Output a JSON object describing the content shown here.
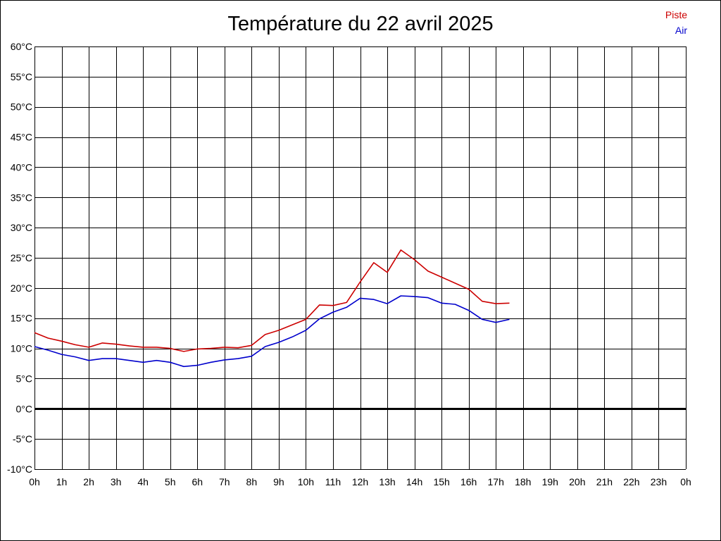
{
  "chart_data": {
    "type": "line",
    "title": "Température du 22 avril 2025",
    "x_tick_labels": [
      "0h",
      "1h",
      "2h",
      "3h",
      "4h",
      "5h",
      "6h",
      "7h",
      "8h",
      "9h",
      "10h",
      "11h",
      "12h",
      "13h",
      "14h",
      "15h",
      "16h",
      "17h",
      "18h",
      "19h",
      "20h",
      "21h",
      "22h",
      "23h",
      "0h"
    ],
    "y_tick_labels": [
      "60°C",
      "55°C",
      "50°C",
      "45°C",
      "40°C",
      "35°C",
      "30°C",
      "25°C",
      "20°C",
      "15°C",
      "10°C",
      "5°C",
      "0°C",
      "-5°C",
      "-10°C"
    ],
    "xlim": [
      0,
      24
    ],
    "ylim": [
      -10,
      60
    ],
    "grid": true,
    "legend_position": "top-right",
    "series": [
      {
        "name": "Piste",
        "color": "#cc0000",
        "x": [
          0,
          0.5,
          1,
          1.5,
          2,
          2.5,
          3,
          3.5,
          4,
          4.5,
          5,
          5.5,
          6,
          6.5,
          7,
          7.5,
          8,
          8.5,
          9,
          9.5,
          10,
          10.5,
          11,
          11.5,
          12,
          12.5,
          13,
          13.5,
          14,
          14.5,
          15,
          15.5,
          16,
          16.5,
          17,
          17.5
        ],
        "y": [
          12.6,
          11.7,
          11.2,
          10.6,
          10.2,
          10.9,
          10.7,
          10.4,
          10.2,
          10.2,
          10.0,
          9.5,
          9.9,
          10.0,
          10.2,
          10.1,
          10.5,
          12.3,
          13.0,
          13.9,
          14.8,
          17.2,
          17.1,
          17.6,
          21.0,
          24.2,
          22.6,
          26.3,
          24.7,
          22.8,
          21.8,
          20.8,
          19.8,
          17.8,
          17.4,
          17.5
        ]
      },
      {
        "name": "Air",
        "color": "#0000cc",
        "x": [
          0,
          0.5,
          1,
          1.5,
          2,
          2.5,
          3,
          3.5,
          4,
          4.5,
          5,
          5.5,
          6,
          6.5,
          7,
          7.5,
          8,
          8.5,
          9,
          9.5,
          10,
          10.5,
          11,
          11.5,
          12,
          12.5,
          13,
          13.5,
          14,
          14.5,
          15,
          15.5,
          16,
          16.5,
          17,
          17.5
        ],
        "y": [
          10.3,
          9.7,
          9.0,
          8.6,
          8.0,
          8.3,
          8.3,
          8.0,
          7.7,
          8.0,
          7.7,
          7.0,
          7.2,
          7.7,
          8.1,
          8.3,
          8.7,
          10.3,
          11.0,
          11.9,
          13.0,
          14.9,
          16.0,
          16.8,
          18.3,
          18.1,
          17.4,
          18.7,
          18.6,
          18.4,
          17.5,
          17.3,
          16.3,
          14.8,
          14.3,
          14.8
        ]
      }
    ]
  }
}
